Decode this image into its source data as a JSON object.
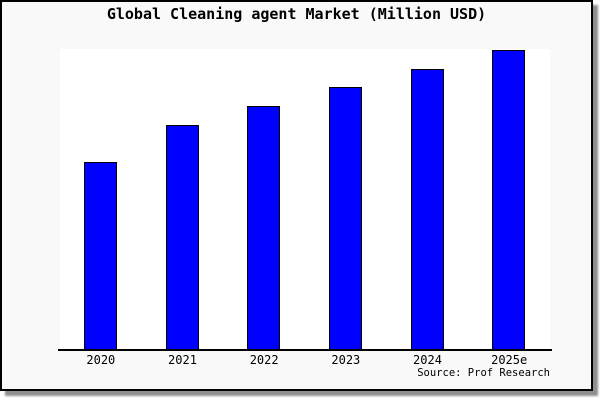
{
  "window": {
    "background": "#f9f9f9",
    "border_color": "#000000",
    "shadow_color": "#8f8f8f"
  },
  "source": "Source: Prof Research",
  "chart_data": {
    "type": "bar",
    "title": "Global Cleaning agent Market (Million USD)",
    "categories": [
      "2020",
      "2021",
      "2022",
      "2023",
      "2024",
      "2025e"
    ],
    "values": [
      62.5,
      75,
      81.5,
      87.5,
      93.5,
      100
    ],
    "values_unit": "relative (no y-axis labels shown; tallest bar 2025e = 100)",
    "xlabel": "",
    "ylabel": "",
    "ylim": [
      0,
      100
    ],
    "grid": false,
    "legend": false,
    "bar_color": "#0000ff",
    "bar_border_color": "#000000",
    "plot_background": "#ffffff"
  }
}
